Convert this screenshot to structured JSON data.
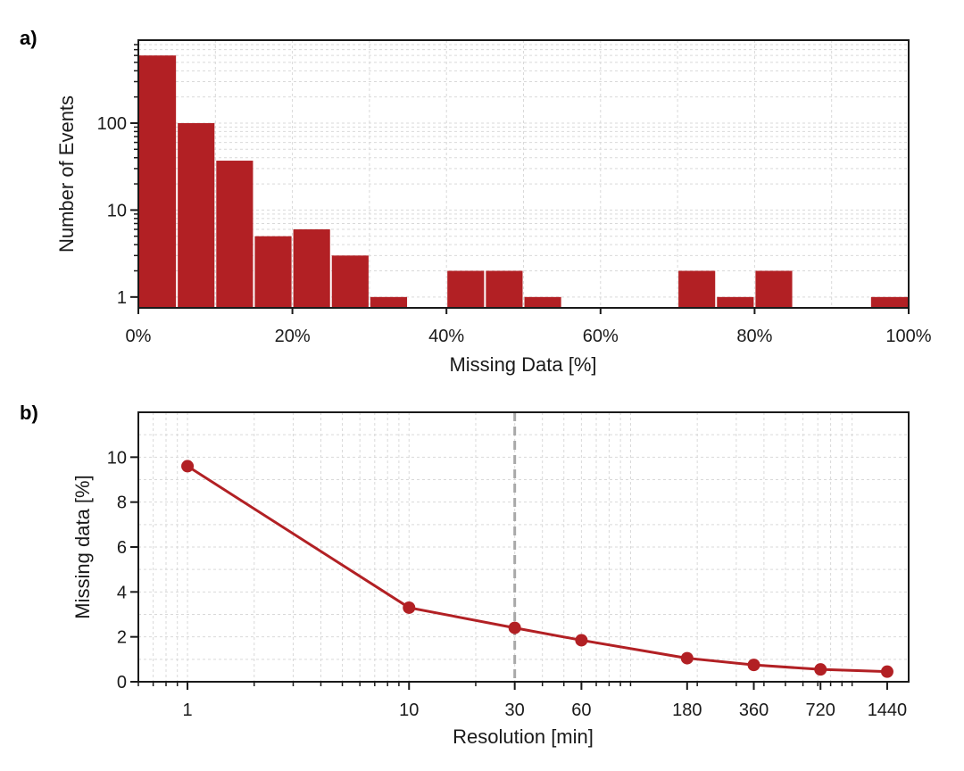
{
  "panels": {
    "a": {
      "label": "a)"
    },
    "b": {
      "label": "b)"
    }
  },
  "colors": {
    "bar": "#b22024",
    "line": "#b22024",
    "marker": "#b22024",
    "grid": "#d9d9d9",
    "vline": "#a8a8a8",
    "axis": "#1a1a1a"
  },
  "chart_data": [
    {
      "type": "bar",
      "panel": "a)",
      "xlabel": "Missing Data [%]",
      "ylabel": "Number of Events",
      "xscale": "linear",
      "yscale": "log",
      "xlim": [
        0,
        100
      ],
      "ylim": [
        0.75,
        900
      ],
      "xticks": [
        0,
        20,
        40,
        60,
        80,
        100
      ],
      "xtick_labels": [
        "0%",
        "20%",
        "40%",
        "60%",
        "80%",
        "100%"
      ],
      "yticks": [
        1,
        10,
        100
      ],
      "ytick_labels": [
        "1",
        "10",
        "100"
      ],
      "grid": true,
      "bin_width": 5,
      "bin_starts": [
        0,
        5,
        10,
        15,
        20,
        25,
        30,
        35,
        40,
        45,
        50,
        55,
        60,
        65,
        70,
        75,
        80,
        85,
        90,
        95
      ],
      "values": [
        600,
        100,
        37,
        5,
        6,
        3,
        1,
        0,
        2,
        2,
        1,
        0,
        0,
        0,
        2,
        1,
        2,
        0,
        0,
        1
      ]
    },
    {
      "type": "line",
      "panel": "b)",
      "xlabel": "Resolution [min]",
      "ylabel": "Missing data [%]",
      "xscale": "log",
      "yscale": "linear",
      "xlim": [
        0.6,
        1800
      ],
      "ylim": [
        0,
        12
      ],
      "xticks": [
        1,
        10,
        30,
        60,
        180,
        360,
        720,
        1440
      ],
      "xtick_labels": [
        "1",
        "10",
        "30",
        "60",
        "180",
        "360",
        "720",
        "1440"
      ],
      "yticks": [
        0,
        2,
        4,
        6,
        8,
        10
      ],
      "ytick_labels": [
        "0",
        "2",
        "4",
        "6",
        "8",
        "10"
      ],
      "grid": true,
      "vline_x": 30,
      "series": [
        {
          "x": [
            1,
            10,
            30,
            60,
            180,
            360,
            720,
            1440
          ],
          "values": [
            9.6,
            3.3,
            2.4,
            1.85,
            1.05,
            0.75,
            0.55,
            0.45
          ]
        }
      ]
    }
  ]
}
